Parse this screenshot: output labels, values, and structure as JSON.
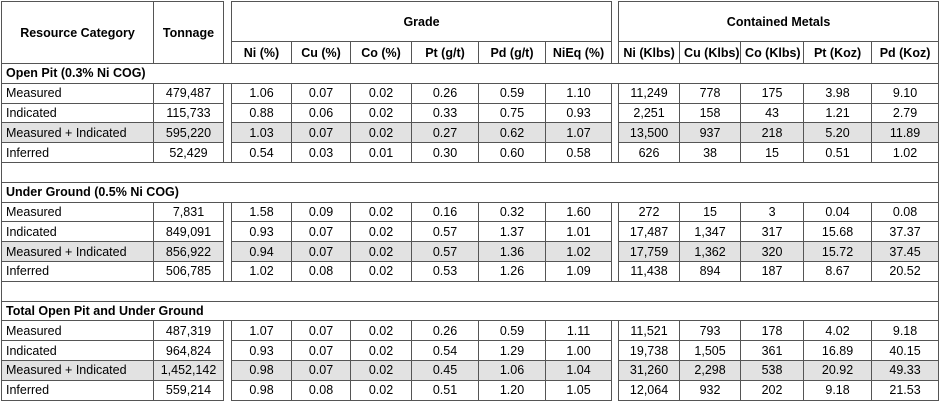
{
  "header": {
    "category": "Resource Category",
    "tonnage": "Tonnage",
    "grade": "Grade",
    "contained": "Contained Metals",
    "grade_columns": [
      "Ni (%)",
      "Cu (%)",
      "Co (%)",
      "Pt (g/t)",
      "Pd (g/t)",
      "NiEq (%)"
    ],
    "contained_columns": [
      "Ni (Klbs)",
      "Cu (Klbs)",
      "Co (Klbs)",
      "Pt (Koz)",
      "Pd (Koz)"
    ]
  },
  "sections": [
    {
      "title": "Open Pit (0.3% Ni COG)",
      "rows": [
        [
          "Measured",
          "479,487",
          "1.06",
          "0.07",
          "0.02",
          "0.26",
          "0.59",
          "1.10",
          "11,249",
          "778",
          "175",
          "3.98",
          "9.10"
        ],
        [
          "Indicated",
          "115,733",
          "0.88",
          "0.06",
          "0.02",
          "0.33",
          "0.75",
          "0.93",
          "2,251",
          "158",
          "43",
          "1.21",
          "2.79"
        ],
        [
          "Measured + Indicated",
          "595,220",
          "1.03",
          "0.07",
          "0.02",
          "0.27",
          "0.62",
          "1.07",
          "13,500",
          "937",
          "218",
          "5.20",
          "11.89"
        ],
        [
          "Inferred",
          "52,429",
          "0.54",
          "0.03",
          "0.01",
          "0.30",
          "0.60",
          "0.58",
          "626",
          "38",
          "15",
          "0.51",
          "1.02"
        ]
      ]
    },
    {
      "title": "Under Ground (0.5% Ni COG)",
      "rows": [
        [
          "Measured",
          "7,831",
          "1.58",
          "0.09",
          "0.02",
          "0.16",
          "0.32",
          "1.60",
          "272",
          "15",
          "3",
          "0.04",
          "0.08"
        ],
        [
          "Indicated",
          "849,091",
          "0.93",
          "0.07",
          "0.02",
          "0.57",
          "1.37",
          "1.01",
          "17,487",
          "1,347",
          "317",
          "15.68",
          "37.37"
        ],
        [
          "Measured + Indicated",
          "856,922",
          "0.94",
          "0.07",
          "0.02",
          "0.57",
          "1.36",
          "1.02",
          "17,759",
          "1,362",
          "320",
          "15.72",
          "37.45"
        ],
        [
          "Inferred",
          "506,785",
          "1.02",
          "0.08",
          "0.02",
          "0.53",
          "1.26",
          "1.09",
          "11,438",
          "894",
          "187",
          "8.67",
          "20.52"
        ]
      ]
    },
    {
      "title": "Total Open Pit and Under Ground",
      "rows": [
        [
          "Measured",
          "487,319",
          "1.07",
          "0.07",
          "0.02",
          "0.26",
          "0.59",
          "1.11",
          "11,521",
          "793",
          "178",
          "4.02",
          "9.18"
        ],
        [
          "Indicated",
          "964,824",
          "0.93",
          "0.07",
          "0.02",
          "0.54",
          "1.29",
          "1.00",
          "19,738",
          "1,505",
          "361",
          "16.89",
          "40.15"
        ],
        [
          "Measured + Indicated",
          "1,452,142",
          "0.98",
          "0.07",
          "0.02",
          "0.45",
          "1.06",
          "1.04",
          "31,260",
          "2,298",
          "538",
          "20.92",
          "49.33"
        ],
        [
          "Inferred",
          "559,214",
          "0.98",
          "0.08",
          "0.02",
          "0.51",
          "1.20",
          "1.05",
          "12,064",
          "932",
          "202",
          "9.18",
          "21.53"
        ]
      ]
    }
  ]
}
